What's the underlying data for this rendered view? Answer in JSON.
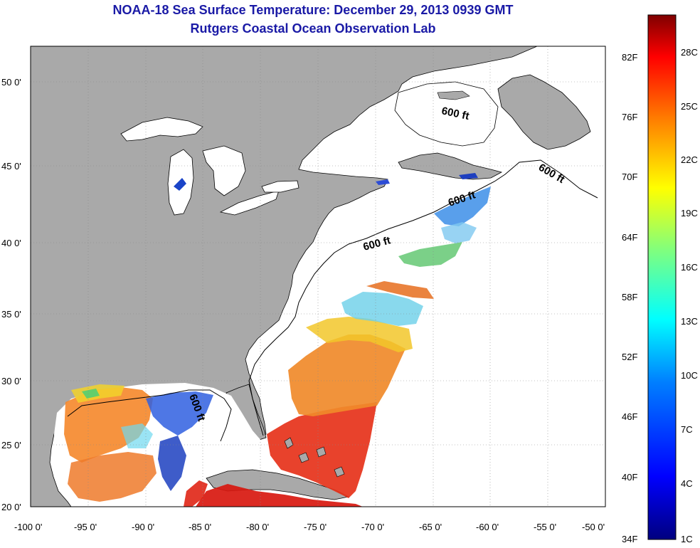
{
  "title": "NOAA-18 Sea Surface Temperature:  December 29, 2013 0939 GMT",
  "subtitle": "Rutgers Coastal Ocean Observation Lab",
  "colors": {
    "land": "#a9a9a9",
    "water_no_data": "#ffffff",
    "coast_line": "#000000",
    "title_text": "#1a1aa6"
  },
  "map": {
    "lon_labels": [
      "-100 0'",
      "-95 0'",
      "-90 0'",
      "-85 0'",
      "-80 0'",
      "-75 0'",
      "-70 0'",
      "-65 0'",
      "-60 0'",
      "-55 0'",
      "-50 0'"
    ],
    "lat_labels": [
      "50 0'",
      "45 0'",
      "40 0'",
      "35 0'",
      "30 0'",
      "25 0'",
      "20 0'"
    ],
    "lon_range": [
      -100,
      -50
    ],
    "lat_range": [
      20,
      52
    ],
    "isobath_label": "600 ft"
  },
  "colorbar": {
    "celsius_labels": [
      "28C",
      "25C",
      "22C",
      "19C",
      "16C",
      "13C",
      "10C",
      "7C",
      "4C",
      "1C"
    ],
    "fahrenheit_labels": [
      "82F",
      "76F",
      "70F",
      "64F",
      "58F",
      "52F",
      "46F",
      "40F",
      "34F"
    ],
    "gradient_stops": [
      "#00007f",
      "#0000ff",
      "#007fff",
      "#00ffff",
      "#7fff7f",
      "#ffff00",
      "#ff7f00",
      "#ff0000",
      "#7f0000"
    ]
  }
}
